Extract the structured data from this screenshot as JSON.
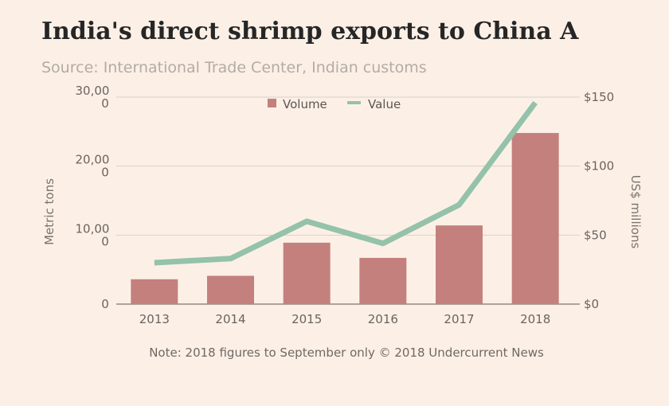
{
  "chart_data": {
    "type": "bar",
    "title": "India's direct shrimp exports to China A",
    "subtitle": "Source: International Trade Center, Indian customs",
    "categories": [
      "2013",
      "2014",
      "2015",
      "2016",
      "2017",
      "2018"
    ],
    "series": [
      {
        "name": "Volume",
        "type": "bar",
        "axis": "left",
        "color": "#c4807d",
        "values": [
          3600,
          4100,
          8900,
          6700,
          11400,
          24800
        ]
      },
      {
        "name": "Value",
        "type": "line",
        "axis": "right",
        "color": "#94c2aa",
        "values": [
          30,
          33,
          60,
          44,
          72,
          146
        ]
      }
    ],
    "y_left": {
      "label": "Metric tons",
      "ylim": [
        0,
        30000
      ],
      "ticks": [
        {
          "value": 0,
          "lines": [
            "0"
          ]
        },
        {
          "value": 10000,
          "lines": [
            "10,00",
            "0"
          ]
        },
        {
          "value": 20000,
          "lines": [
            "20,00",
            "0"
          ]
        },
        {
          "value": 30000,
          "lines": [
            "30,00",
            "0"
          ]
        }
      ]
    },
    "y_right": {
      "label": "US$ millions",
      "ylim": [
        0,
        150
      ],
      "ticks": [
        {
          "value": 0,
          "label": "$0"
        },
        {
          "value": 50,
          "label": "$50"
        },
        {
          "value": 100,
          "label": "$100"
        },
        {
          "value": 150,
          "label": "$150"
        }
      ]
    },
    "gridlines": true,
    "legend": {
      "position": "top-center",
      "items": [
        "Volume",
        "Value"
      ]
    },
    "note": "Note: 2018 figures to September only © 2018 Undercurrent News"
  }
}
